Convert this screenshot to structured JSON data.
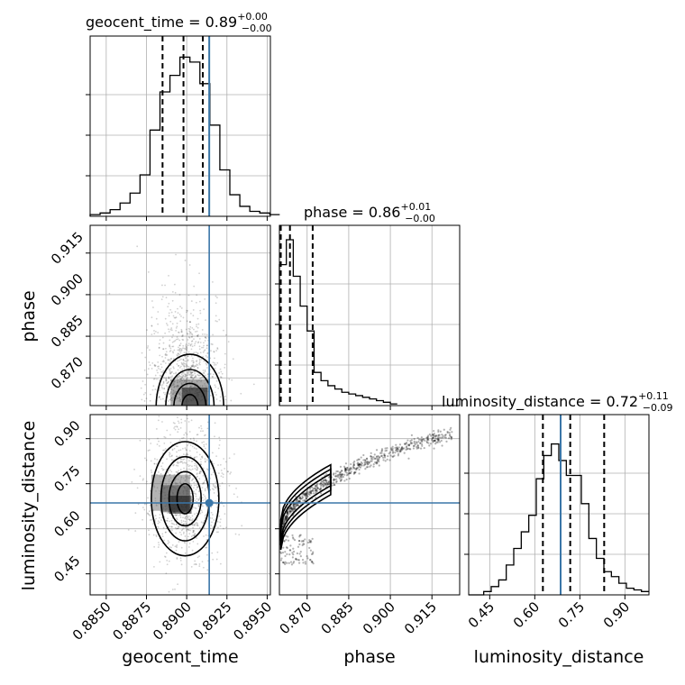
{
  "chart_data": {
    "type": "corner",
    "parameters": [
      {
        "name": "geocent_time",
        "title": {
          "prefix": "geocent_time = 0.89",
          "plus": "+0.00",
          "minus": "−0.00"
        },
        "range": [
          0.884,
          0.8952
        ],
        "ticks": [
          0.885,
          0.8875,
          0.89,
          0.8925,
          0.895
        ],
        "tick_labels": [
          "0.8850",
          "0.8875",
          "0.8900",
          "0.8925",
          "0.8950"
        ],
        "quantiles": [
          0.8885,
          0.8898,
          0.891
        ],
        "truth": 0.8914,
        "histogram": {
          "bin_start": 0.884,
          "bin_width": 0.00062,
          "counts": [
            0.01,
            0.02,
            0.04,
            0.08,
            0.14,
            0.25,
            0.52,
            0.75,
            0.85,
            0.96,
            0.93,
            0.8,
            0.55,
            0.28,
            0.13,
            0.06,
            0.03,
            0.02,
            0.01
          ]
        }
      },
      {
        "name": "phase",
        "title": {
          "prefix": "phase = 0.86",
          "plus": "+0.01",
          "minus": "−0.00"
        },
        "range": [
          0.86,
          0.925
        ],
        "ticks": [
          0.87,
          0.885,
          0.9,
          0.915
        ],
        "tick_labels": [
          "0.870",
          "0.885",
          "0.900",
          "0.915"
        ],
        "quantiles": [
          0.8605,
          0.8638,
          0.872
        ],
        "histogram": {
          "bin_start": 0.86,
          "bin_width": 0.0025,
          "counts": [
            0.85,
            1.0,
            0.78,
            0.6,
            0.45,
            0.2,
            0.15,
            0.12,
            0.1,
            0.08,
            0.07,
            0.06,
            0.05,
            0.04,
            0.03,
            0.02,
            0.01
          ]
        }
      },
      {
        "name": "luminosity_distance",
        "title": {
          "prefix": "luminosity_distance = 0.72",
          "plus": "+0.11",
          "minus": "−0.09"
        },
        "range": [
          0.38,
          0.98
        ],
        "ticks": [
          0.45,
          0.6,
          0.75,
          0.9
        ],
        "tick_labels": [
          "0.45",
          "0.60",
          "0.75",
          "0.90"
        ],
        "quantiles": [
          0.627,
          0.718,
          0.831
        ],
        "truth": 0.686,
        "histogram": {
          "bin_start": 0.38,
          "bin_width": 0.025,
          "counts": [
            0.0,
            0.0,
            0.02,
            0.05,
            0.09,
            0.18,
            0.28,
            0.38,
            0.48,
            0.7,
            0.84,
            0.91,
            0.81,
            0.72,
            0.72,
            0.55,
            0.34,
            0.22,
            0.14,
            0.11,
            0.07,
            0.04,
            0.03,
            0.02
          ]
        }
      }
    ],
    "truth_marker": {
      "x": 0.8914,
      "y": 0.686
    },
    "truth_color": "#3a76a8"
  }
}
